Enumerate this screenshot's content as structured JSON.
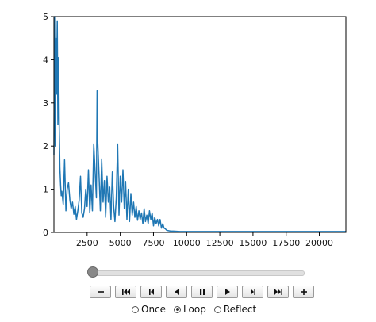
{
  "chart_data": {
    "type": "line",
    "title": "",
    "xlabel": "",
    "ylabel": "",
    "xlim": [
      0,
      22000
    ],
    "ylim": [
      0,
      5
    ],
    "x_ticks": [
      2500,
      5000,
      7500,
      10000,
      12500,
      15000,
      17500,
      20000
    ],
    "y_ticks": [
      0,
      1,
      2,
      3,
      4,
      5
    ],
    "grid": false,
    "line_color": "#1f77b4",
    "series": [
      {
        "x": [
          0,
          50,
          100,
          150,
          200,
          250,
          300,
          350,
          400,
          450,
          500,
          550,
          600,
          700,
          800,
          900,
          1000,
          1100,
          1200,
          1300,
          1400,
          1500,
          1600,
          1700,
          1800,
          1900,
          2000,
          2100,
          2200,
          2300,
          2400,
          2500,
          2600,
          2700,
          2800,
          2900,
          3000,
          3100,
          3200,
          3250,
          3300,
          3400,
          3500,
          3600,
          3700,
          3800,
          3900,
          4000,
          4100,
          4200,
          4300,
          4400,
          4500,
          4600,
          4700,
          4800,
          4900,
          5000,
          5100,
          5200,
          5300,
          5400,
          5500,
          5600,
          5700,
          5800,
          5900,
          6000,
          6100,
          6200,
          6300,
          6400,
          6500,
          6600,
          6700,
          6800,
          6900,
          7000,
          7100,
          7200,
          7300,
          7400,
          7500,
          7600,
          7700,
          7800,
          7900,
          8000,
          8100,
          8200,
          8300,
          8400,
          8500,
          8600,
          8800,
          9000,
          9500,
          10000,
          12000,
          14000,
          16000,
          18000,
          20000,
          22000
        ],
        "y": [
          1.8,
          5.0,
          2.0,
          4.5,
          3.2,
          4.9,
          2.5,
          4.05,
          2.4,
          1.5,
          1.1,
          0.85,
          0.95,
          0.65,
          1.68,
          0.5,
          1.0,
          1.15,
          0.75,
          0.55,
          0.7,
          0.42,
          0.6,
          0.3,
          0.5,
          0.75,
          1.3,
          0.45,
          0.35,
          0.55,
          1.0,
          0.6,
          1.45,
          0.45,
          1.1,
          0.5,
          2.05,
          1.4,
          0.8,
          3.28,
          2.1,
          1.3,
          0.5,
          1.7,
          0.7,
          1.2,
          0.35,
          1.3,
          0.7,
          1.05,
          0.3,
          1.4,
          0.6,
          0.25,
          0.8,
          2.05,
          0.4,
          1.3,
          0.7,
          1.45,
          0.55,
          1.18,
          0.3,
          1.0,
          0.25,
          0.9,
          0.4,
          0.7,
          0.35,
          0.6,
          0.28,
          0.5,
          0.3,
          0.45,
          0.2,
          0.55,
          0.25,
          0.4,
          0.2,
          0.5,
          0.3,
          0.45,
          0.15,
          0.35,
          0.2,
          0.3,
          0.15,
          0.3,
          0.1,
          0.2,
          0.1,
          0.08,
          0.05,
          0.04,
          0.03,
          0.03,
          0.02,
          0.02,
          0.02,
          0.02,
          0.02,
          0.02,
          0.02,
          0.02
        ]
      }
    ]
  },
  "animation_controls": {
    "progress": 0,
    "buttons": [
      {
        "icon": "minus-icon",
        "name": "slower-button"
      },
      {
        "icon": "first-frame-icon",
        "name": "first-frame-button"
      },
      {
        "icon": "step-back-icon",
        "name": "step-back-button"
      },
      {
        "icon": "play-reverse-icon",
        "name": "play-reverse-button"
      },
      {
        "icon": "pause-icon",
        "name": "pause-button"
      },
      {
        "icon": "play-icon",
        "name": "play-button"
      },
      {
        "icon": "step-forward-icon",
        "name": "step-forward-button"
      },
      {
        "icon": "last-frame-icon",
        "name": "last-frame-button"
      },
      {
        "icon": "plus-icon",
        "name": "faster-button"
      }
    ],
    "loop_modes": [
      {
        "label": "Once",
        "checked": false
      },
      {
        "label": "Loop",
        "checked": true
      },
      {
        "label": "Reflect",
        "checked": false
      }
    ]
  }
}
